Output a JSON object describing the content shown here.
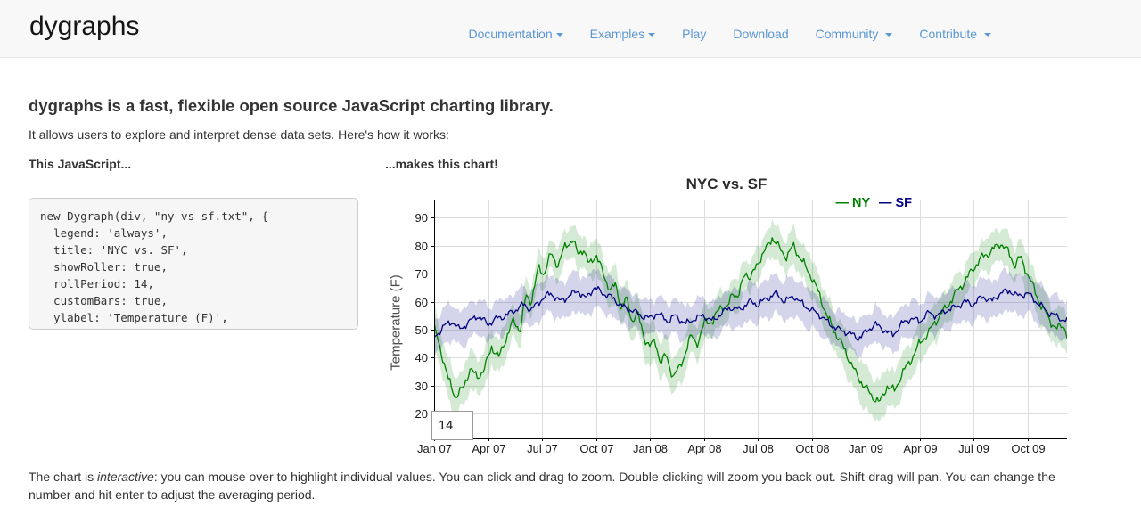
{
  "header": {
    "brand": "dygraphs",
    "nav": [
      {
        "label": "Documentation",
        "dropdown": true,
        "spaced": false
      },
      {
        "label": "Examples",
        "dropdown": true,
        "spaced": false
      },
      {
        "label": "Play",
        "dropdown": false,
        "spaced": false
      },
      {
        "label": "Download",
        "dropdown": false,
        "spaced": false
      },
      {
        "label": "Community",
        "dropdown": true,
        "spaced": true
      },
      {
        "label": "Contribute",
        "dropdown": true,
        "spaced": true
      }
    ],
    "link_color": "#5b97d5"
  },
  "intro": {
    "heading": "dygraphs is a fast, flexible open source JavaScript charting library.",
    "subtext": "It allows users to explore and interpret dense data sets. Here's how it works:"
  },
  "columns": {
    "left_label": "This JavaScript...",
    "right_label": "...makes this chart!"
  },
  "code": {
    "lines": [
      "new Dygraph(div, \"ny-vs-sf.txt\", {",
      "  legend: 'always',",
      "  title: 'NYC vs. SF',",
      "  showRoller: true,",
      "  rollPeriod: 14,",
      "  customBars: true,",
      "  ylabel: 'Temperature (F)',",
      "});"
    ]
  },
  "roller": {
    "value": "14"
  },
  "chart_data": {
    "type": "line",
    "title": "NYC vs. SF",
    "ylabel": "Temperature (F)",
    "x_ticks": [
      "Jan 07",
      "Apr 07",
      "Jul 07",
      "Oct 07",
      "Jan 08",
      "Apr 08",
      "Jul 08",
      "Oct 08",
      "Jan 09",
      "Apr 09",
      "Jul 09",
      "Oct 09"
    ],
    "x_tick_interval_months": 3,
    "x_end_month": 35.2,
    "y_ticks": [
      20,
      30,
      40,
      50,
      60,
      70,
      80,
      90
    ],
    "ylim": [
      11.2,
      96.1
    ],
    "grid": true,
    "grid_color": "#dcdcdc",
    "axis_color": "#000000",
    "legend_position": "top-right",
    "legend": [
      {
        "dash": "—",
        "label": "NY",
        "color": "#008000"
      },
      {
        "dash": "—",
        "label": "SF",
        "color": "#000080"
      }
    ],
    "series": [
      {
        "name": "NY",
        "color": "#008000",
        "band_alpha": 0.17,
        "noise_amp": 1.0,
        "noise_phase": 0.7,
        "points": [
          [
            0,
            51
          ],
          [
            0.4,
            42
          ],
          [
            0.8,
            32
          ],
          [
            1.2,
            26
          ],
          [
            1.6,
            29
          ],
          [
            2.0,
            36
          ],
          [
            2.4,
            33
          ],
          [
            2.8,
            36
          ],
          [
            3.2,
            44
          ],
          [
            3.6,
            40
          ],
          [
            4.0,
            47
          ],
          [
            4.4,
            53
          ],
          [
            4.8,
            50
          ],
          [
            5.1,
            62
          ],
          [
            5.4,
            60
          ],
          [
            5.8,
            72
          ],
          [
            6.1,
            70
          ],
          [
            6.5,
            77
          ],
          [
            6.9,
            73
          ],
          [
            7.3,
            80
          ],
          [
            7.7,
            82
          ],
          [
            8.0,
            77
          ],
          [
            8.3,
            79
          ],
          [
            8.6,
            73
          ],
          [
            9.0,
            77
          ],
          [
            9.4,
            70
          ],
          [
            9.8,
            64
          ],
          [
            10.1,
            66
          ],
          [
            10.4,
            58
          ],
          [
            10.7,
            61
          ],
          [
            11.0,
            53
          ],
          [
            11.3,
            56
          ],
          [
            11.7,
            47
          ],
          [
            12.0,
            44
          ],
          [
            12.3,
            46
          ],
          [
            12.6,
            38
          ],
          [
            12.9,
            41
          ],
          [
            13.3,
            33
          ],
          [
            13.6,
            36
          ],
          [
            14.0,
            42
          ],
          [
            14.3,
            48
          ],
          [
            14.7,
            45
          ],
          [
            15.1,
            54
          ],
          [
            15.5,
            52
          ],
          [
            15.9,
            59
          ],
          [
            16.3,
            57
          ],
          [
            16.6,
            64
          ],
          [
            16.9,
            61
          ],
          [
            17.3,
            71
          ],
          [
            17.6,
            68
          ],
          [
            18.0,
            74
          ],
          [
            18.4,
            78
          ],
          [
            18.8,
            83
          ],
          [
            19.2,
            79
          ],
          [
            19.6,
            76
          ],
          [
            20.0,
            80
          ],
          [
            20.4,
            75
          ],
          [
            20.9,
            70
          ],
          [
            21.4,
            63
          ],
          [
            21.9,
            54
          ],
          [
            22.4,
            48
          ],
          [
            22.9,
            42
          ],
          [
            23.4,
            35
          ],
          [
            23.9,
            30
          ],
          [
            24.4,
            26
          ],
          [
            24.8,
            24
          ],
          [
            25.2,
            30
          ],
          [
            25.6,
            28
          ],
          [
            26.0,
            34
          ],
          [
            26.5,
            39
          ],
          [
            27.0,
            45
          ],
          [
            27.5,
            49
          ],
          [
            28.0,
            54
          ],
          [
            28.5,
            58
          ],
          [
            29.0,
            63
          ],
          [
            29.5,
            67
          ],
          [
            30.0,
            72
          ],
          [
            30.5,
            76
          ],
          [
            31.0,
            78
          ],
          [
            31.5,
            81
          ],
          [
            31.9,
            78
          ],
          [
            32.3,
            73
          ],
          [
            32.6,
            76
          ],
          [
            33.0,
            70
          ],
          [
            33.4,
            64
          ],
          [
            33.8,
            58
          ],
          [
            34.2,
            54
          ],
          [
            34.6,
            50
          ],
          [
            35.0,
            52
          ],
          [
            35.2,
            48
          ]
        ],
        "band_half_points": [
          [
            0,
            7
          ],
          [
            3,
            6.5
          ],
          [
            6,
            5.5
          ],
          [
            9,
            6
          ],
          [
            12,
            7
          ],
          [
            15,
            6
          ],
          [
            18,
            5.5
          ],
          [
            21,
            6.5
          ],
          [
            24,
            7.5
          ],
          [
            27,
            6.5
          ],
          [
            30,
            5.5
          ],
          [
            33,
            6.5
          ],
          [
            35.2,
            6.5
          ]
        ]
      },
      {
        "name": "SF",
        "color": "#000080",
        "band_alpha": 0.17,
        "noise_amp": 0.8,
        "noise_phase": 2.1,
        "points": [
          [
            0,
            47
          ],
          [
            0.5,
            51
          ],
          [
            1.0,
            53
          ],
          [
            1.4,
            50
          ],
          [
            2.0,
            53
          ],
          [
            2.4,
            55
          ],
          [
            3.0,
            52
          ],
          [
            3.5,
            54
          ],
          [
            4.0,
            55
          ],
          [
            4.5,
            57
          ],
          [
            5.0,
            59
          ],
          [
            5.4,
            57
          ],
          [
            6.0,
            61
          ],
          [
            6.5,
            63
          ],
          [
            7.0,
            60
          ],
          [
            7.5,
            62
          ],
          [
            8.0,
            64
          ],
          [
            8.4,
            61
          ],
          [
            8.9,
            65
          ],
          [
            9.4,
            63
          ],
          [
            10.0,
            61
          ],
          [
            10.5,
            58
          ],
          [
            11.0,
            57
          ],
          [
            11.5,
            55
          ],
          [
            12.0,
            54
          ],
          [
            12.4,
            56
          ],
          [
            13.0,
            53
          ],
          [
            13.4,
            55
          ],
          [
            14.0,
            52
          ],
          [
            14.5,
            54
          ],
          [
            15.0,
            55
          ],
          [
            15.5,
            53
          ],
          [
            16.0,
            56
          ],
          [
            16.5,
            58
          ],
          [
            17.0,
            57
          ],
          [
            17.5,
            60
          ],
          [
            18.0,
            59
          ],
          [
            18.5,
            61
          ],
          [
            19.0,
            63
          ],
          [
            19.5,
            60
          ],
          [
            20.0,
            62
          ],
          [
            20.5,
            59
          ],
          [
            21.0,
            57
          ],
          [
            21.5,
            55
          ],
          [
            22.0,
            52
          ],
          [
            22.5,
            50
          ],
          [
            23.0,
            49
          ],
          [
            23.6,
            47
          ],
          [
            24.0,
            49
          ],
          [
            24.5,
            52
          ],
          [
            25.0,
            50
          ],
          [
            25.5,
            48
          ],
          [
            26.0,
            52
          ],
          [
            26.5,
            54
          ],
          [
            27.0,
            53
          ],
          [
            27.5,
            56
          ],
          [
            28.0,
            55
          ],
          [
            28.5,
            57
          ],
          [
            29.0,
            58
          ],
          [
            29.5,
            60
          ],
          [
            30.0,
            59
          ],
          [
            30.5,
            62
          ],
          [
            31.0,
            60
          ],
          [
            31.5,
            63
          ],
          [
            32.0,
            64
          ],
          [
            32.4,
            62
          ],
          [
            33.0,
            63
          ],
          [
            33.5,
            60
          ],
          [
            34.0,
            57
          ],
          [
            34.5,
            55
          ],
          [
            35.2,
            53
          ]
        ],
        "band_half_points": [
          [
            0,
            6.5
          ],
          [
            4,
            6
          ],
          [
            8,
            7
          ],
          [
            12,
            6
          ],
          [
            16,
            6.5
          ],
          [
            20,
            7
          ],
          [
            24,
            6
          ],
          [
            28,
            6.5
          ],
          [
            32,
            7
          ],
          [
            35.2,
            7
          ]
        ]
      }
    ]
  },
  "footer": {
    "line1_prefix": "The chart is ",
    "line1_italic": "interactive",
    "line1_rest": ": you can mouse over to highlight individual values. You can click and drag to zoom. Double-clicking will zoom you back out. Shift-drag will pan. You can change the",
    "line2": "number and hit enter to adjust the averaging period."
  }
}
